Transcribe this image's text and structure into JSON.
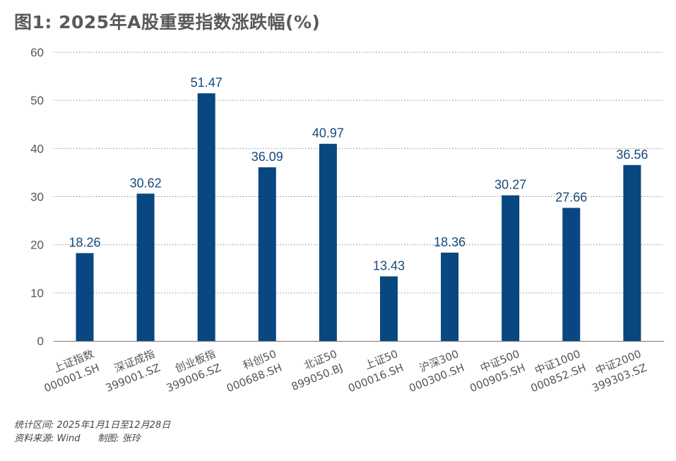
{
  "title": "图1: 2025年A股重要指数涨跌幅(%)",
  "footer": {
    "range": "统计区间: 2025年1月1日至12月28日",
    "source": "资料来源: Wind      制图: 张玲"
  },
  "colors": {
    "bar": "#094780",
    "label": "#174a7c",
    "axis": "#555555",
    "grid": "#8c8c8c"
  },
  "chart_data": {
    "type": "bar",
    "title": "图1: 2025年A股重要指数涨跌幅(%)",
    "xlabel": "",
    "ylabel": "",
    "ylim": [
      0,
      60
    ],
    "yticks": [
      0,
      10,
      20,
      30,
      40,
      50,
      60
    ],
    "grid": true,
    "categories": [
      {
        "name": "上证指数",
        "code": "000001.SH"
      },
      {
        "name": "深证成指",
        "code": "399001.SZ"
      },
      {
        "name": "创业板指",
        "code": "399006.SZ"
      },
      {
        "name": "科创50",
        "code": "000688.SH"
      },
      {
        "name": "北证50",
        "code": "899050.BJ"
      },
      {
        "name": "上证50",
        "code": "000016.SH"
      },
      {
        "name": "沪深300",
        "code": "000300.SH"
      },
      {
        "name": "中证500",
        "code": "000905.SH"
      },
      {
        "name": "中证1000",
        "code": "000852.SH"
      },
      {
        "name": "中证2000",
        "code": "399303.SZ"
      }
    ],
    "values": [
      18.26,
      30.62,
      51.47,
      36.09,
      40.97,
      13.43,
      18.36,
      30.27,
      27.66,
      36.56
    ]
  }
}
